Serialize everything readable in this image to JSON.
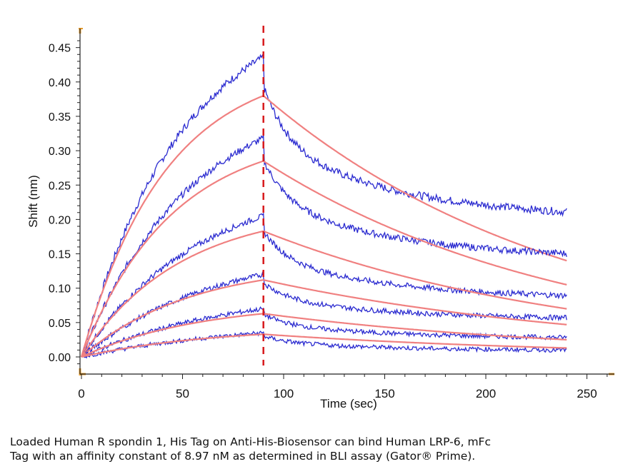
{
  "chart_data": {
    "type": "line",
    "title": "",
    "xlabel": "Time (sec)",
    "ylabel": "Shift (nm)",
    "xlim": [
      0,
      260
    ],
    "ylim": [
      -0.02,
      0.47
    ],
    "x_ticks": [
      0,
      50,
      100,
      150,
      200,
      250
    ],
    "y_ticks": [
      0.0,
      0.05,
      0.1,
      0.15,
      0.2,
      0.25,
      0.3,
      0.35,
      0.4,
      0.45
    ],
    "x_tick_labels": [
      "0",
      "50",
      "100",
      "150",
      "200",
      "250"
    ],
    "y_tick_labels": [
      "0.00",
      "0.05",
      "0.10",
      "0.15",
      "0.20",
      "0.25",
      "0.30",
      "0.35",
      "0.40",
      "0.45"
    ],
    "marker_line": {
      "x": 90,
      "style": "dashed",
      "color": "#d7191c"
    },
    "colors": {
      "measured": "#2b2bd0",
      "fit": "#f08080",
      "axis": "#222222",
      "axis_end": "#e69b2b"
    },
    "series": [
      {
        "assoc_end": 0.436,
        "diss_end": 0.193,
        "fit_assoc_end": 0.38,
        "fit_diss_end": 0.14
      },
      {
        "assoc_end": 0.318,
        "diss_end": 0.137,
        "fit_assoc_end": 0.285,
        "fit_diss_end": 0.105
      },
      {
        "assoc_end": 0.205,
        "diss_end": 0.08,
        "fit_assoc_end": 0.183,
        "fit_diss_end": 0.07
      },
      {
        "assoc_end": 0.12,
        "diss_end": 0.052,
        "fit_assoc_end": 0.112,
        "fit_diss_end": 0.047
      },
      {
        "assoc_end": 0.07,
        "diss_end": 0.025,
        "fit_assoc_end": 0.063,
        "fit_diss_end": 0.025
      },
      {
        "assoc_end": 0.035,
        "diss_end": 0.008,
        "fit_assoc_end": 0.033,
        "fit_diss_end": 0.013
      }
    ],
    "x_range_data": [
      0,
      240
    ],
    "association_end_x": 90
  },
  "caption": {
    "line1": "Loaded Human R spondin 1, His Tag on Anti-His-Biosensor can bind Human LRP-6, mFc",
    "line2": "Tag with an affinity constant of 8.97 nM as determined in BLI assay (Gator® Prime)."
  }
}
